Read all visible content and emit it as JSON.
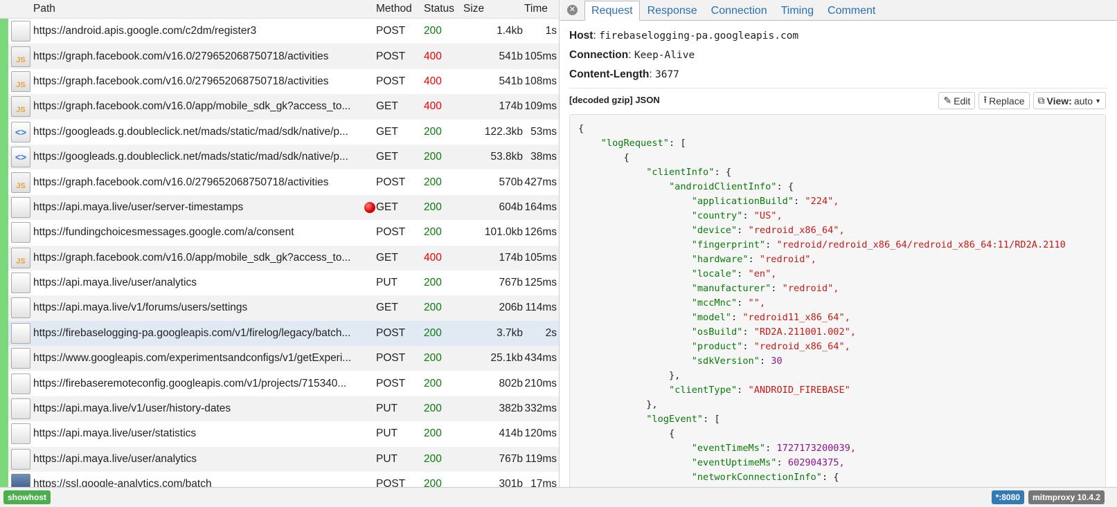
{
  "columns": {
    "path": "Path",
    "method": "Method",
    "status": "Status",
    "size": "Size",
    "time": "Time"
  },
  "colors": {
    "ok": "#0a7a0a",
    "error": "#e00000",
    "selected_row": "#e1eaf4",
    "status_bar_indicator": "#7dd87d"
  },
  "flows": [
    {
      "icon": "plain",
      "path": "https://android.apis.google.com/c2dm/register3",
      "method": "POST",
      "status": "200",
      "size": "1.4kb",
      "time": "1s"
    },
    {
      "icon": "js",
      "path": "https://graph.facebook.com/v16.0/279652068750718/activities",
      "method": "POST",
      "status": "400",
      "size": "541b",
      "time": "105ms"
    },
    {
      "icon": "js",
      "path": "https://graph.facebook.com/v16.0/279652068750718/activities",
      "method": "POST",
      "status": "400",
      "size": "541b",
      "time": "108ms"
    },
    {
      "icon": "js",
      "path": "https://graph.facebook.com/v16.0/app/mobile_sdk_gk?access_to...",
      "method": "GET",
      "status": "400",
      "size": "174b",
      "time": "109ms"
    },
    {
      "icon": "html",
      "path": "https://googleads.g.doubleclick.net/mads/static/mad/sdk/native/p...",
      "method": "GET",
      "status": "200",
      "size": "122.3kb",
      "time": "53ms"
    },
    {
      "icon": "html",
      "path": "https://googleads.g.doubleclick.net/mads/static/mad/sdk/native/p...",
      "method": "GET",
      "status": "200",
      "size": "53.8kb",
      "time": "38ms"
    },
    {
      "icon": "js",
      "path": "https://graph.facebook.com/v16.0/279652068750718/activities",
      "method": "POST",
      "status": "200",
      "size": "570b",
      "time": "427ms"
    },
    {
      "icon": "plain",
      "path": "https://api.maya.live/user/server-timestamps",
      "method": "GET",
      "status": "200",
      "size": "604b",
      "time": "164ms",
      "marked": true
    },
    {
      "icon": "plain",
      "path": "https://fundingchoicesmessages.google.com/a/consent",
      "method": "POST",
      "status": "200",
      "size": "101.0kb",
      "time": "126ms"
    },
    {
      "icon": "js",
      "path": "https://graph.facebook.com/v16.0/app/mobile_sdk_gk?access_to...",
      "method": "GET",
      "status": "400",
      "size": "174b",
      "time": "105ms"
    },
    {
      "icon": "plain",
      "path": "https://api.maya.live/user/analytics",
      "method": "PUT",
      "status": "200",
      "size": "767b",
      "time": "125ms"
    },
    {
      "icon": "plain",
      "path": "https://api.maya.live/v1/forums/users/settings",
      "method": "GET",
      "status": "200",
      "size": "206b",
      "time": "114ms"
    },
    {
      "icon": "plain",
      "path": "https://firebaselogging-pa.googleapis.com/v1/firelog/legacy/batch...",
      "method": "POST",
      "status": "200",
      "size": "3.7kb",
      "time": "2s",
      "selected": true
    },
    {
      "icon": "plain",
      "path": "https://www.googleapis.com/experimentsandconfigs/v1/getExperi...",
      "method": "POST",
      "status": "200",
      "size": "25.1kb",
      "time": "434ms"
    },
    {
      "icon": "plain",
      "path": "https://firebaseremoteconfig.googleapis.com/v1/projects/715340...",
      "method": "POST",
      "status": "200",
      "size": "802b",
      "time": "210ms"
    },
    {
      "icon": "plain",
      "path": "https://api.maya.live/v1/user/history-dates",
      "method": "PUT",
      "status": "200",
      "size": "382b",
      "time": "332ms"
    },
    {
      "icon": "plain",
      "path": "https://api.maya.live/user/statistics",
      "method": "PUT",
      "status": "200",
      "size": "414b",
      "time": "120ms"
    },
    {
      "icon": "plain",
      "path": "https://api.maya.live/user/analytics",
      "method": "PUT",
      "status": "200",
      "size": "767b",
      "time": "119ms"
    },
    {
      "icon": "image",
      "path": "https://ssl.google-analytics.com/batch",
      "method": "POST",
      "status": "200",
      "size": "301b",
      "time": "17ms"
    }
  ],
  "detail": {
    "tabs": [
      "Request",
      "Response",
      "Connection",
      "Timing",
      "Comment"
    ],
    "active_tab": "Request",
    "headers": [
      {
        "name": "Host",
        "value": "firebaselogging-pa.googleapis.com"
      },
      {
        "name": "Connection",
        "value": "Keep-Alive"
      },
      {
        "name": "Content-Length",
        "value": "3677"
      }
    ],
    "content_type": "[decoded gzip] JSON",
    "edit_label": "Edit",
    "replace_label": "Replace",
    "view_label": "View:",
    "view_value": "auto",
    "code_lines": [
      [
        0,
        null,
        "{",
        ""
      ],
      [
        1,
        "logRequest",
        "[",
        "p"
      ],
      [
        2,
        null,
        "{",
        ""
      ],
      [
        3,
        "clientInfo",
        "{",
        "p"
      ],
      [
        4,
        "androidClientInfo",
        "{",
        "p"
      ],
      [
        5,
        "applicationBuild",
        "\"224\",",
        "s"
      ],
      [
        5,
        "country",
        "\"US\",",
        "s"
      ],
      [
        5,
        "device",
        "\"redroid_x86_64\",",
        "s"
      ],
      [
        5,
        "fingerprint",
        "\"redroid/redroid_x86_64/redroid_x86_64:11/RD2A.2110",
        "s"
      ],
      [
        5,
        "hardware",
        "\"redroid\",",
        "s"
      ],
      [
        5,
        "locale",
        "\"en\",",
        "s"
      ],
      [
        5,
        "manufacturer",
        "\"redroid\",",
        "s"
      ],
      [
        5,
        "mccMnc",
        "\"\",",
        "s"
      ],
      [
        5,
        "model",
        "\"redroid11_x86_64\",",
        "s"
      ],
      [
        5,
        "osBuild",
        "\"RD2A.211001.002\",",
        "s"
      ],
      [
        5,
        "product",
        "\"redroid_x86_64\",",
        "s"
      ],
      [
        5,
        "sdkVersion",
        "30",
        "n"
      ],
      [
        4,
        null,
        "},",
        ""
      ],
      [
        4,
        "clientType",
        "\"ANDROID_FIREBASE\"",
        "s"
      ],
      [
        3,
        null,
        "},",
        ""
      ],
      [
        3,
        "logEvent",
        "[",
        "p"
      ],
      [
        4,
        null,
        "{",
        ""
      ],
      [
        5,
        "eventTimeMs",
        "1727173200039,",
        "n"
      ],
      [
        5,
        "eventUptimeMs",
        "602904375,",
        "n"
      ],
      [
        5,
        "networkConnectionInfo",
        "{",
        "p"
      ]
    ]
  },
  "status_bar": {
    "showhost": "showhost",
    "listen": "*:8080",
    "version": "mitmproxy 10.4.2"
  }
}
